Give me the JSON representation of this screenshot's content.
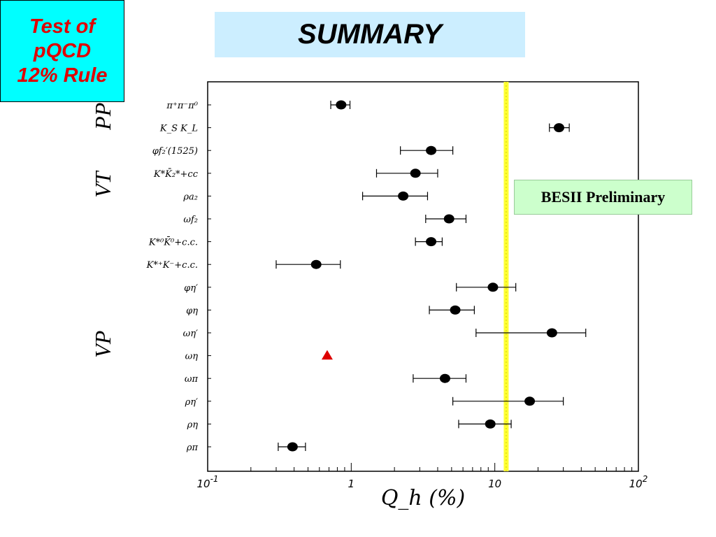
{
  "corner_box": {
    "line1": "Test of",
    "line2": "pQCD",
    "line3": "12% Rule"
  },
  "title": "SUMMARY",
  "preliminary_label": "BESII Preliminary",
  "chart_data": {
    "type": "scatter",
    "x_axis": {
      "scale": "log",
      "range": [
        0.1,
        100
      ],
      "xlabel": "Q_h (%)"
    },
    "x_ticks": [
      {
        "base": "10",
        "exp": "-1",
        "value": 0.1
      },
      {
        "base": "1",
        "exp": "",
        "value": 1
      },
      {
        "base": "10",
        "exp": "",
        "value": 10
      },
      {
        "base": "10",
        "exp": "2",
        "value": 100
      }
    ],
    "rule_line": {
      "value": 12,
      "color": "#ffff33"
    },
    "groups": [
      {
        "label": "PP",
        "from": "π⁺π⁻π⁰",
        "to": "K_S K_L"
      },
      {
        "label": "VT",
        "from": "φf₂′(1525)",
        "to": "ωf₂"
      },
      {
        "label": "VP",
        "from": "K*⁰K̄⁰+c.c.",
        "to": "ρπ"
      }
    ],
    "points": [
      {
        "label": "π⁺π⁻π⁰",
        "value": 0.85,
        "err_low": 0.72,
        "err_high": 0.98,
        "marker": "circle"
      },
      {
        "label": "K_S K_L",
        "value": 28,
        "err_low": 24,
        "err_high": 33,
        "marker": "circle"
      },
      {
        "label": "φf₂′(1525)",
        "value": 3.6,
        "err_low": 2.2,
        "err_high": 5.1,
        "marker": "circle"
      },
      {
        "label": "K*K̄₂*+cc",
        "value": 2.8,
        "err_low": 1.5,
        "err_high": 4.0,
        "marker": "circle"
      },
      {
        "label": "ρa₂",
        "value": 2.3,
        "err_low": 1.2,
        "err_high": 3.4,
        "marker": "circle"
      },
      {
        "label": "ωf₂",
        "value": 4.8,
        "err_low": 3.3,
        "err_high": 6.3,
        "marker": "circle"
      },
      {
        "label": "K*⁰K̄⁰+c.c.",
        "value": 3.6,
        "err_low": 2.8,
        "err_high": 4.3,
        "marker": "circle"
      },
      {
        "label": "K*⁺K⁻+c.c.",
        "value": 0.57,
        "err_low": 0.3,
        "err_high": 0.84,
        "marker": "circle"
      },
      {
        "label": "φη′",
        "value": 9.7,
        "err_low": 5.4,
        "err_high": 14,
        "marker": "circle"
      },
      {
        "label": "φη",
        "value": 5.3,
        "err_low": 3.5,
        "err_high": 7.2,
        "marker": "circle"
      },
      {
        "label": "ωη′",
        "value": 25,
        "err_low": 7.4,
        "err_high": 43,
        "marker": "circle"
      },
      {
        "label": "ωη",
        "value": 0.68,
        "err_low": null,
        "err_high": null,
        "marker": "triangle",
        "color": "#dd0000"
      },
      {
        "label": "ωπ",
        "value": 4.5,
        "err_low": 2.7,
        "err_high": 6.3,
        "marker": "circle"
      },
      {
        "label": "ρη′",
        "value": 17.5,
        "err_low": 5.1,
        "err_high": 30,
        "marker": "circle"
      },
      {
        "label": "ρη",
        "value": 9.3,
        "err_low": 5.6,
        "err_high": 13,
        "marker": "circle"
      },
      {
        "label": "ρπ",
        "value": 0.39,
        "err_low": 0.31,
        "err_high": 0.48,
        "marker": "circle"
      }
    ]
  }
}
